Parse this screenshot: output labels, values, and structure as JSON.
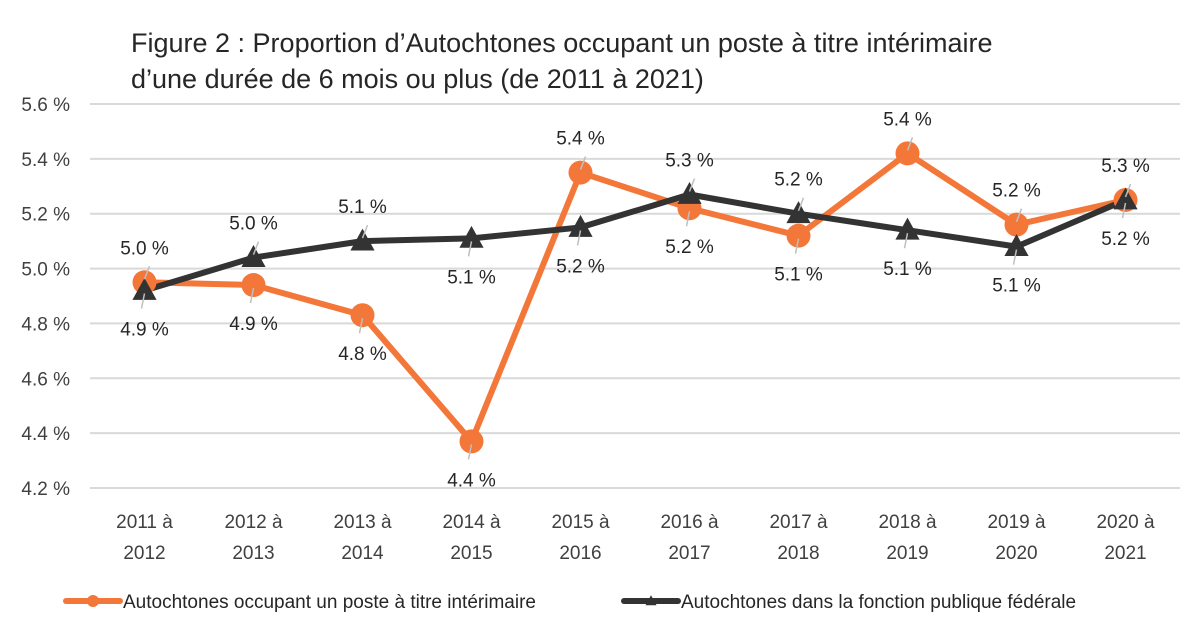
{
  "chart_data": {
    "type": "line",
    "title": "Figure 2 : Proportion d’Autochtones occupant un poste à titre intérimaire d’une durée de 6 mois ou plus (de 2011 à 2021)",
    "title_lines": [
      "Figure 2 : Proportion d’Autochtones occupant un poste à titre intérimaire",
      "d’une durée de 6 mois ou plus (de 2011 à 2021)"
    ],
    "xlabel": "",
    "ylabel": "",
    "categories": [
      [
        "2011 à",
        "2012"
      ],
      [
        "2012 à",
        "2013"
      ],
      [
        "2013 à",
        "2014"
      ],
      [
        "2014 à",
        "2015"
      ],
      [
        "2015 à",
        "2016"
      ],
      [
        "2016 à",
        "2017"
      ],
      [
        "2017 à",
        "2018"
      ],
      [
        "2018 à",
        "2019"
      ],
      [
        "2019 à",
        "2020"
      ],
      [
        "2020 à",
        "2021"
      ]
    ],
    "ylim": [
      4.2,
      5.6
    ],
    "yticks": [
      4.2,
      4.4,
      4.6,
      4.8,
      5.0,
      5.2,
      5.4,
      5.6
    ],
    "ytick_labels": [
      "4.2 %",
      "4.4 %",
      "4.6 %",
      "4.8 %",
      "5.0 %",
      "5.2 %",
      "5.4 %",
      "5.6 %"
    ],
    "grid": true,
    "legend_position": "bottom",
    "series": [
      {
        "name": "Autochtones occupant un poste à titre intérimaire",
        "color": "#F4773A",
        "marker": "circle",
        "values": [
          4.95,
          4.94,
          4.83,
          4.37,
          5.35,
          5.22,
          5.12,
          5.42,
          5.16,
          5.25
        ],
        "labels": [
          "5.0 %",
          "4.9 %",
          "4.8 %",
          "4.4 %",
          "5.4 %",
          "5.2 %",
          "5.1 %",
          "5.4 %",
          "5.2 %",
          "5.2 %"
        ],
        "label_pos": [
          "above",
          "below",
          "below",
          "below",
          "above",
          "below",
          "below",
          "above",
          "above",
          "below"
        ]
      },
      {
        "name": "Autochtones dans la fonction publique fédérale",
        "color": "#333333",
        "marker": "triangle",
        "values": [
          4.92,
          5.04,
          5.1,
          5.11,
          5.15,
          5.27,
          5.2,
          5.14,
          5.08,
          5.25
        ],
        "labels": [
          "4.9 %",
          "5.0 %",
          "5.1 %",
          "5.1 %",
          "5.2 %",
          "5.3 %",
          "5.2 %",
          "5.1 %",
          "5.1 %",
          "5.3 %"
        ],
        "label_pos": [
          "below",
          "above",
          "above",
          "below",
          "below",
          "above",
          "above",
          "below",
          "below",
          "above"
        ]
      }
    ]
  }
}
